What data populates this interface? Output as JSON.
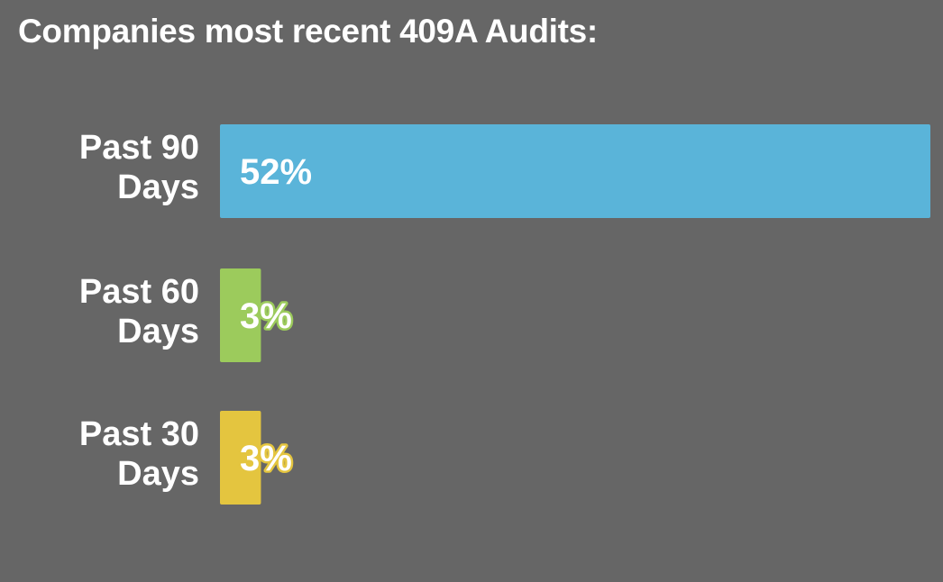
{
  "chart_data": {
    "type": "bar",
    "orientation": "horizontal",
    "title": "Companies most recent 409A Audits:",
    "categories": [
      [
        "Past 90",
        "Days"
      ],
      [
        "Past 60",
        "Days"
      ],
      [
        "Past 30",
        "Days"
      ]
    ],
    "values": [
      52,
      3,
      3
    ],
    "value_labels": [
      "52%",
      "3%",
      "3%"
    ],
    "unit": "%",
    "colors": [
      "#5ab4d9",
      "#9ccb5c",
      "#e4c53f"
    ],
    "xlim": [
      0,
      52
    ],
    "grid": false,
    "legend": "none"
  }
}
